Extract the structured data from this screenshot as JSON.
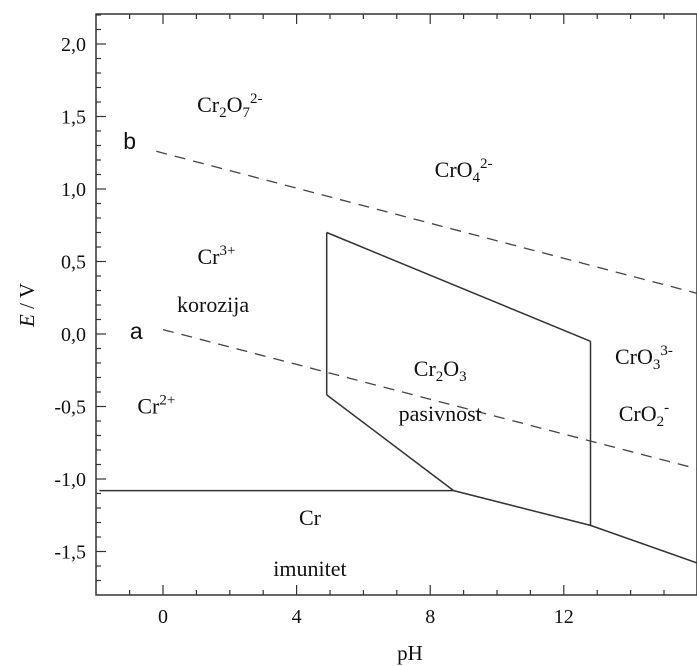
{
  "chart_data": {
    "type": "line",
    "xlabel": "pH",
    "ylabel_italic": "E",
    "ylabel_rest": " / V",
    "xlim": [
      -1.9,
      16
    ],
    "ylim": [
      -1.85,
      2.3
    ],
    "xticks": [
      {
        "value": 0,
        "label": "0"
      },
      {
        "value": 4,
        "label": "4"
      },
      {
        "value": 8,
        "label": "8"
      },
      {
        "value": 12,
        "label": "12"
      }
    ],
    "yticks": [
      {
        "value": 2.0,
        "label": "2,0"
      },
      {
        "value": 1.5,
        "label": "1,5"
      },
      {
        "value": 1.0,
        "label": "1,0"
      },
      {
        "value": 0.5,
        "label": "0,5"
      },
      {
        "value": 0.0,
        "label": "0,0"
      },
      {
        "value": -0.5,
        "label": "-0,5"
      },
      {
        "value": -1.0,
        "label": "-1,0"
      },
      {
        "value": -1.5,
        "label": "-1,5"
      }
    ],
    "boundaries": [
      {
        "name": "Cr2+/Cr",
        "points": [
          [
            -1.9,
            -1.08
          ],
          [
            8.7,
            -1.08
          ]
        ]
      },
      {
        "name": "Cr2O3/Cr",
        "points": [
          [
            8.7,
            -1.08
          ],
          [
            12.8,
            -1.32
          ],
          [
            16,
            -1.58
          ]
        ]
      },
      {
        "name": "Cr2+/Cr2O3",
        "points": [
          [
            4.9,
            -0.42
          ],
          [
            8.7,
            -1.08
          ]
        ]
      },
      {
        "name": "Cr3+/Cr2O3",
        "points": [
          [
            4.9,
            0.7
          ],
          [
            4.9,
            -0.42
          ]
        ]
      },
      {
        "name": "Cr2O3/CrO4",
        "points": [
          [
            4.9,
            0.7
          ],
          [
            12.8,
            -0.05
          ]
        ]
      },
      {
        "name": "Cr2O3/CrO3",
        "points": [
          [
            12.8,
            -0.05
          ],
          [
            12.8,
            -1.32
          ]
        ]
      }
    ],
    "water_lines": [
      {
        "label": "b",
        "label_at": [
          -1.0,
          1.33
        ],
        "points": [
          [
            -0.2,
            1.26
          ],
          [
            16,
            0.28
          ]
        ]
      },
      {
        "label": "a",
        "label_at": [
          -0.8,
          0.02
        ],
        "points": [
          [
            0.0,
            0.03
          ],
          [
            16,
            -0.93
          ]
        ]
      }
    ],
    "regions": [
      {
        "base": "Cr",
        "sub": "2",
        "mid": "O",
        "sub2": "7",
        "sup": "2-",
        "at": [
          2.0,
          1.58
        ]
      },
      {
        "base": "CrO",
        "sub": "4",
        "mid": "",
        "sub2": "",
        "sup": "2-",
        "at": [
          9.0,
          1.13
        ]
      },
      {
        "base": "Cr",
        "sub": "",
        "mid": "",
        "sub2": "",
        "sup": "3+",
        "at": [
          1.6,
          0.53
        ]
      },
      {
        "base": "korozija",
        "sub": "",
        "mid": "",
        "sub2": "",
        "sup": "",
        "at": [
          1.5,
          0.2
        ]
      },
      {
        "base": "Cr",
        "sub": "2",
        "mid": "O",
        "sub2": "3",
        "sup": "",
        "at": [
          8.3,
          -0.24
        ]
      },
      {
        "base": "pasivnost",
        "sub": "",
        "mid": "",
        "sub2": "",
        "sup": "",
        "at": [
          8.3,
          -0.55
        ]
      },
      {
        "base": "Cr",
        "sub": "",
        "mid": "",
        "sub2": "",
        "sup": "2+",
        "at": [
          -0.2,
          -0.5
        ]
      },
      {
        "base": "CrO",
        "sub": "3",
        "mid": "",
        "sub2": "",
        "sup": "3-",
        "at": [
          14.4,
          -0.16
        ]
      },
      {
        "base": "CrO",
        "sub": "2",
        "mid": "",
        "sub2": "",
        "sup": "-",
        "at": [
          14.4,
          -0.55
        ]
      },
      {
        "base": "Cr",
        "sub": "",
        "mid": "",
        "sub2": "",
        "sup": "",
        "at": [
          4.4,
          -1.27
        ]
      },
      {
        "base": "imunitet",
        "sub": "",
        "mid": "",
        "sub2": "",
        "sup": "",
        "at": [
          4.4,
          -1.62
        ]
      }
    ]
  }
}
